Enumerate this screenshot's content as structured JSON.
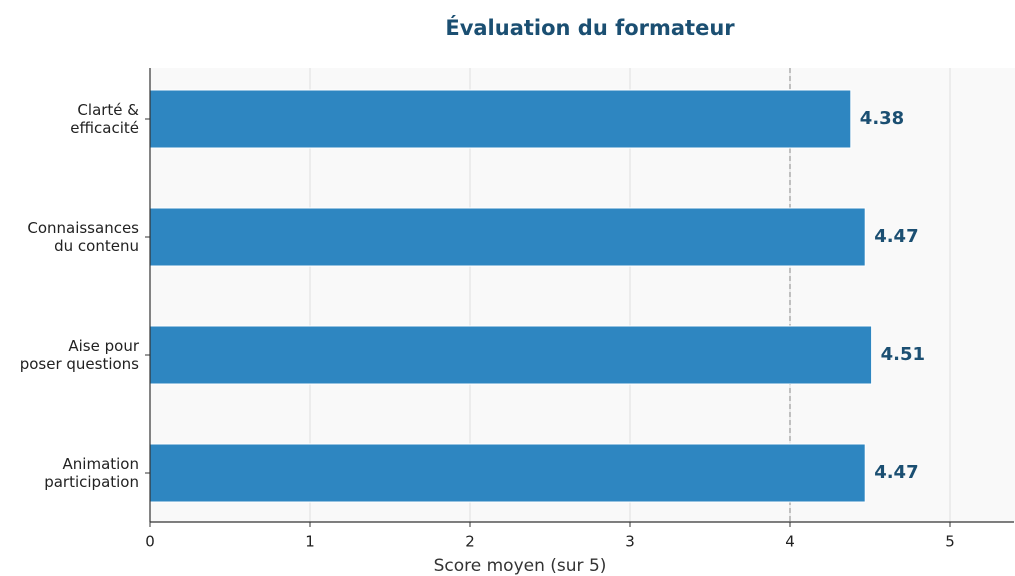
{
  "chart_data": {
    "type": "barh",
    "title": "Évaluation du formateur",
    "xlabel": "Score moyen (sur 5)",
    "categories": [
      "Clarté &\nefficacité",
      "Connaissances\ndu contenu",
      "Aise pour\nposer questions",
      "Animation\nparticipation"
    ],
    "values": [
      4.38,
      4.47,
      4.51,
      4.47
    ],
    "color": "#2e86c1",
    "label_color": "#1b4f72",
    "xlim": [
      0,
      5.4
    ],
    "xticks": [
      0,
      1,
      2,
      3,
      4,
      5
    ],
    "grid": true,
    "reference_line": 4
  }
}
